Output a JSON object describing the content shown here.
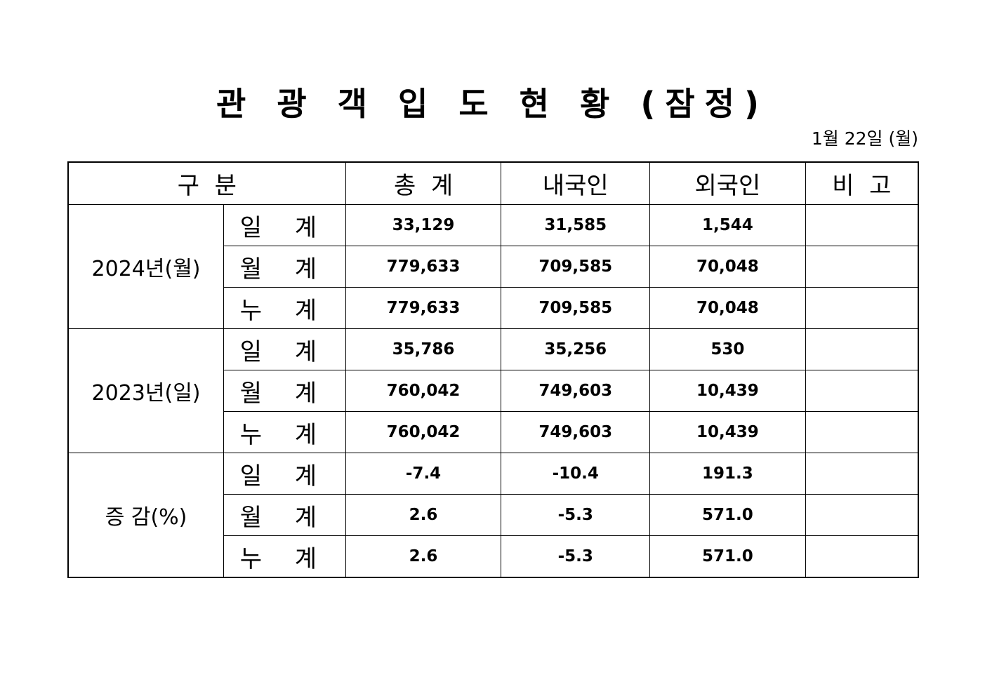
{
  "title": "관 광 객 입 도 현 황 (잠정)",
  "date": "1월 22일 (월)",
  "headers": {
    "category": "구  분",
    "total": "총  계",
    "domestic": "내국인",
    "foreign": "외국인",
    "note": "비  고"
  },
  "groups": [
    {
      "label": "2024년(월)",
      "rows": [
        {
          "label": "일 계",
          "total": "33,129",
          "domestic": "31,585",
          "foreign": "1,544",
          "note": ""
        },
        {
          "label": "월 계",
          "total": "779,633",
          "domestic": "709,585",
          "foreign": "70,048",
          "note": ""
        },
        {
          "label": "누 계",
          "total": "779,633",
          "domestic": "709,585",
          "foreign": "70,048",
          "note": ""
        }
      ]
    },
    {
      "label": "2023년(일)",
      "rows": [
        {
          "label": "일 계",
          "total": "35,786",
          "domestic": "35,256",
          "foreign": "530",
          "note": ""
        },
        {
          "label": "월 계",
          "total": "760,042",
          "domestic": "749,603",
          "foreign": "10,439",
          "note": ""
        },
        {
          "label": "누 계",
          "total": "760,042",
          "domestic": "749,603",
          "foreign": "10,439",
          "note": ""
        }
      ]
    },
    {
      "label": "증 감(%)",
      "rows": [
        {
          "label": "일 계",
          "total": "-7.4",
          "domestic": "-10.4",
          "foreign": "191.3",
          "note": ""
        },
        {
          "label": "월 계",
          "total": "2.6",
          "domestic": "-5.3",
          "foreign": "571.0",
          "note": ""
        },
        {
          "label": "누 계",
          "total": "2.6",
          "domestic": "-5.3",
          "foreign": "571.0",
          "note": ""
        }
      ]
    }
  ]
}
